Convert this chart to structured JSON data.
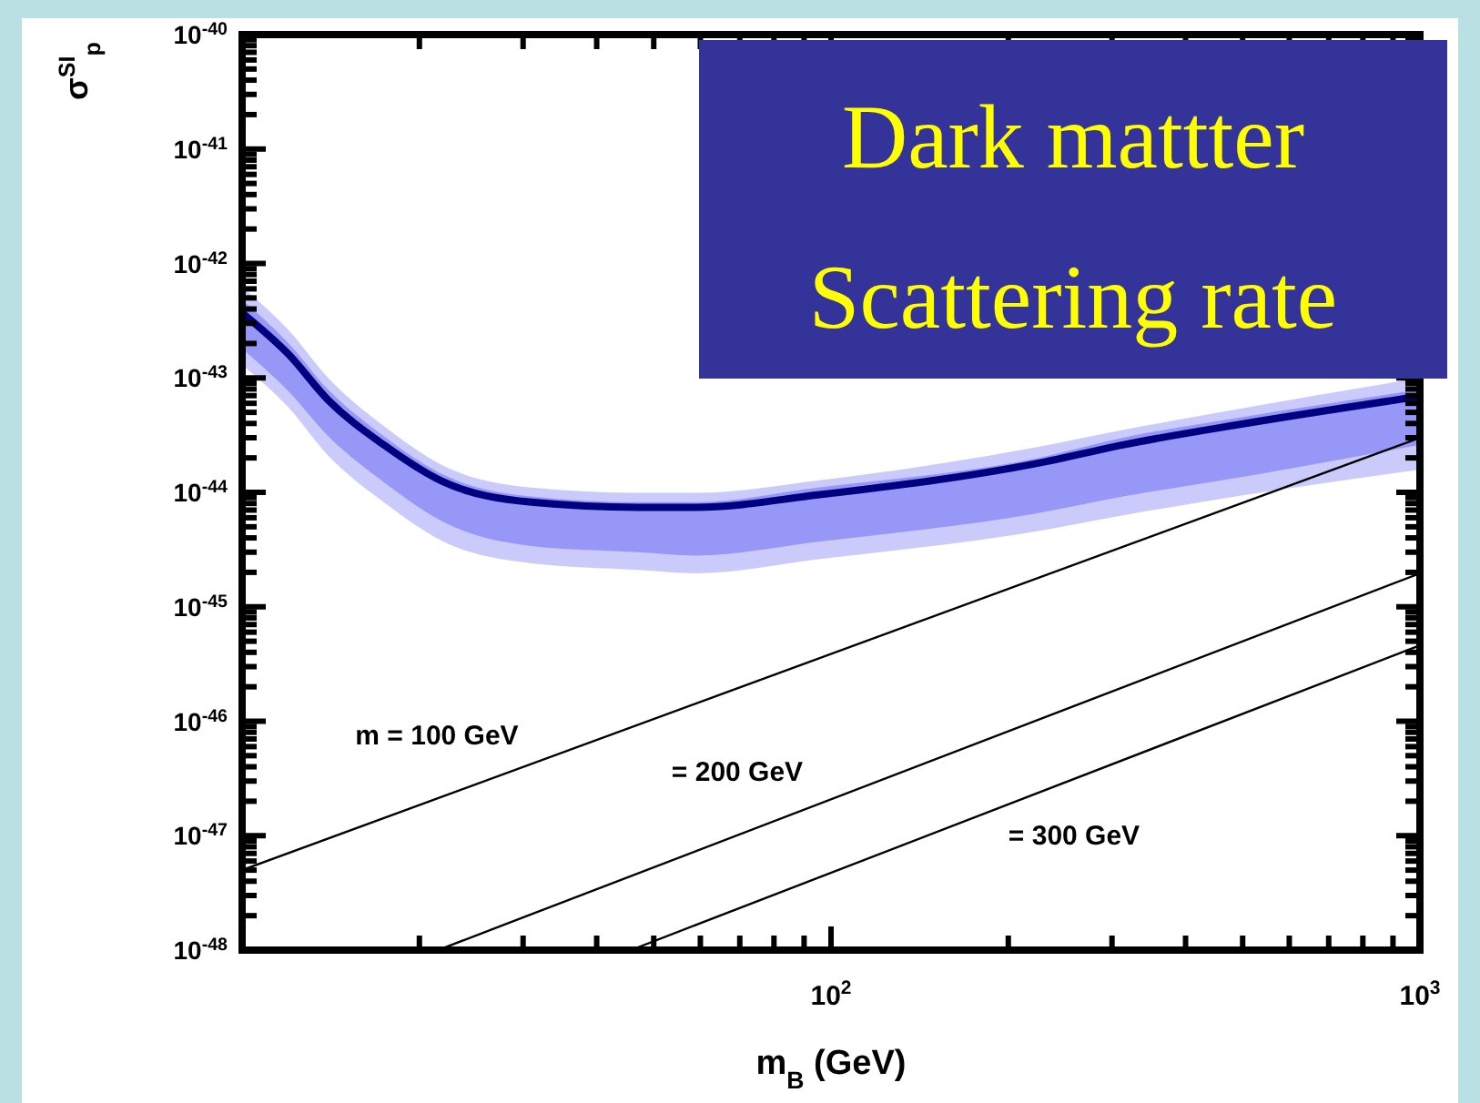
{
  "chart_data": {
    "type": "line",
    "title": "Dark mattter",
    "subtitle": "Scattering rate",
    "xlabel": "m$_{B}$ (GeV)",
    "ylabel": "σ$^{SI}$$_{p}$",
    "log": "xy",
    "marker": "none",
    "x": [
      10,
      12,
      14,
      17.4,
      22,
      31,
      47,
      59,
      95,
      225,
      313,
      506,
      1000
    ],
    "xlim": [
      10,
      1000
    ],
    "ylim": [
      1e-48,
      1e-40
    ],
    "xticks": [
      {
        "value": 20,
        "label": null
      },
      {
        "value": 30,
        "label": null
      },
      {
        "value": 40,
        "label": null
      },
      {
        "value": 50,
        "label": null
      },
      {
        "value": 60,
        "label": null
      },
      {
        "value": 70,
        "label": null
      },
      {
        "value": 80,
        "label": null
      },
      {
        "value": 90,
        "label": null
      },
      {
        "value": 100,
        "label": "10$^{2}$"
      },
      {
        "value": 200,
        "label": null
      },
      {
        "value": 300,
        "label": null
      },
      {
        "value": 400,
        "label": null
      },
      {
        "value": 500,
        "label": null
      },
      {
        "value": 600,
        "label": null
      },
      {
        "value": 700,
        "label": null
      },
      {
        "value": 800,
        "label": null
      },
      {
        "value": 900,
        "label": null
      },
      {
        "value": 1000,
        "label": "10$^{3}$"
      }
    ],
    "yticks": [
      {
        "value": 1e-48,
        "label": "10$^{-48}$"
      },
      {
        "value": 2e-48,
        "label": null
      },
      {
        "value": 3e-48,
        "label": null
      },
      {
        "value": 4e-48,
        "label": null
      },
      {
        "value": 5e-48,
        "label": null
      },
      {
        "value": 6e-48,
        "label": null
      },
      {
        "value": 7e-48,
        "label": null
      },
      {
        "value": 8e-48,
        "label": null
      },
      {
        "value": 9e-48,
        "label": null
      },
      {
        "value": 1e-47,
        "label": "10$^{-47}$"
      },
      {
        "value": 2e-47,
        "label": null
      },
      {
        "value": 3e-47,
        "label": null
      },
      {
        "value": 4e-47,
        "label": null
      },
      {
        "value": 5e-47,
        "label": null
      },
      {
        "value": 6e-47,
        "label": null
      },
      {
        "value": 7e-47,
        "label": null
      },
      {
        "value": 8e-47,
        "label": null
      },
      {
        "value": 9e-47,
        "label": null
      },
      {
        "value": 1e-46,
        "label": "10$^{-46}$"
      },
      {
        "value": 2e-46,
        "label": null
      },
      {
        "value": 3e-46,
        "label": null
      },
      {
        "value": 4e-46,
        "label": null
      },
      {
        "value": 5e-46,
        "label": null
      },
      {
        "value": 6e-46,
        "label": null
      },
      {
        "value": 7e-46,
        "label": null
      },
      {
        "value": 8e-46,
        "label": null
      },
      {
        "value": 9e-46,
        "label": null
      },
      {
        "value": 1e-45,
        "label": "10$^{-45}$"
      },
      {
        "value": 2e-45,
        "label": null
      },
      {
        "value": 3e-45,
        "label": null
      },
      {
        "value": 4e-45,
        "label": null
      },
      {
        "value": 5e-45,
        "label": null
      },
      {
        "value": 6e-45,
        "label": null
      },
      {
        "value": 7e-45,
        "label": null
      },
      {
        "value": 8e-45,
        "label": null
      },
      {
        "value": 9e-45,
        "label": null
      },
      {
        "value": 1e-44,
        "label": "10$^{-44}$"
      },
      {
        "value": 2e-44,
        "label": null
      },
      {
        "value": 3e-44,
        "label": null
      },
      {
        "value": 4e-44,
        "label": null
      },
      {
        "value": 5e-44,
        "label": null
      },
      {
        "value": 6e-44,
        "label": null
      },
      {
        "value": 7e-44,
        "label": null
      },
      {
        "value": 8e-44,
        "label": null
      },
      {
        "value": 9e-44,
        "label": null
      },
      {
        "value": 1e-43,
        "label": "10$^{-43}$"
      },
      {
        "value": 2e-43,
        "label": null
      },
      {
        "value": 3e-43,
        "label": null
      },
      {
        "value": 4e-43,
        "label": null
      },
      {
        "value": 5e-43,
        "label": null
      },
      {
        "value": 6e-43,
        "label": null
      },
      {
        "value": 7e-43,
        "label": null
      },
      {
        "value": 8e-43,
        "label": null
      },
      {
        "value": 9e-43,
        "label": null
      },
      {
        "value": 1e-42,
        "label": "10$^{-42}$"
      },
      {
        "value": 2e-42,
        "label": null
      },
      {
        "value": 3e-42,
        "label": null
      },
      {
        "value": 4e-42,
        "label": null
      },
      {
        "value": 5e-42,
        "label": null
      },
      {
        "value": 6e-42,
        "label": null
      },
      {
        "value": 7e-42,
        "label": null
      },
      {
        "value": 8e-42,
        "label": null
      },
      {
        "value": 9e-42,
        "label": null
      },
      {
        "value": 1e-41,
        "label": "10$^{-41}$"
      },
      {
        "value": 2e-41,
        "label": null
      },
      {
        "value": 3e-41,
        "label": null
      },
      {
        "value": 4e-41,
        "label": null
      },
      {
        "value": 5e-41,
        "label": null
      },
      {
        "value": 6e-41,
        "label": null
      },
      {
        "value": 7e-41,
        "label": null
      },
      {
        "value": 8e-41,
        "label": null
      },
      {
        "value": 9e-41,
        "label": null
      },
      {
        "value": 1e-40,
        "label": "10$^{-40}$"
      }
    ],
    "series": [
      {
        "type": "area",
        "color": "#cacafb",
        "values": [
          null,
          null,
          null,
          null,
          null,
          null,
          null,
          null,
          null,
          null,
          null,
          null,
          null
        ],
        "upper": [
          6.2e-43,
          2.6e-43,
          1e-43,
          3.8e-44,
          1.7e-44,
          1.1e-44,
          9.9e-45,
          9.9e-45,
          1.27e-44,
          2.5e-44,
          3.5e-44,
          5.5e-44,
          1e-43
        ],
        "lower": [
          1.3e-43,
          5.5e-44,
          2.1e-44,
          8.2e-45,
          3.7e-45,
          2.4e-45,
          2.1e-45,
          1.96e-45,
          2.6e-45,
          4.6e-45,
          6.3e-45,
          9.5e-45,
          1.58e-44
        ]
      },
      {
        "type": "line",
        "color": "#000080",
        "values": [
          3.7e-43,
          1.6e-43,
          6.4e-44,
          2.6e-44,
          1.23e-44,
          8.2e-45,
          7.4e-45,
          7.4e-45,
          9.5e-45,
          1.8e-44,
          2.6e-44,
          4e-44,
          6.9e-44
        ],
        "upper": [
          4.8e-43,
          2e-43,
          7.9e-44,
          3.1e-44,
          1.42e-44,
          9.2e-45,
          8.2e-45,
          8.2e-45,
          1.1e-44,
          2e-44,
          3e-44,
          4.6e-44,
          7.9e-44
        ],
        "lower": [
          1.8e-43,
          7.6e-44,
          3.1e-44,
          1.23e-44,
          5.5e-45,
          3.4e-45,
          3e-45,
          2.8e-45,
          3.7e-45,
          6.6e-45,
          9.2e-45,
          1.38e-44,
          2.6e-44
        ]
      },
      {
        "type": "line",
        "name": "m = 100 GeV",
        "color": "#000000",
        "x": [
          10,
          1000
        ],
        "values": [
          5e-48,
          3e-44
        ]
      },
      {
        "type": "line",
        "name": "= 200 GeV",
        "color": "#000000",
        "x": [
          21.5,
          1000
        ],
        "values": [
          1e-48,
          1.96e-45
        ]
      },
      {
        "type": "line",
        "name": "= 300 GeV",
        "color": "#000000",
        "x": [
          45.7,
          1000
        ],
        "values": [
          1e-48,
          4.6e-46
        ]
      }
    ]
  }
}
